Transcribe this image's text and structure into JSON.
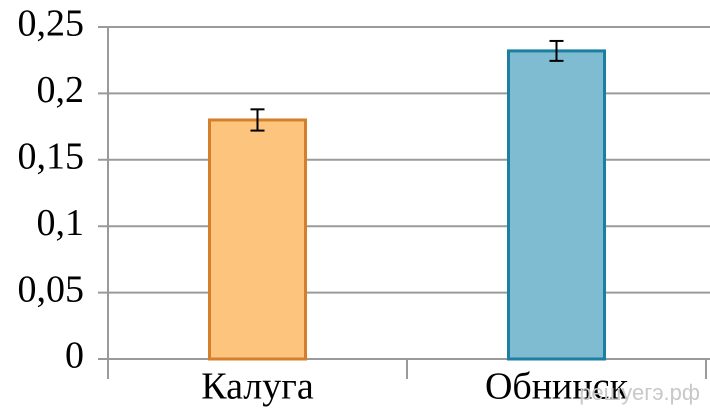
{
  "chart_data": {
    "type": "bar",
    "categories": [
      "Калуга",
      "Обнинск"
    ],
    "values": [
      0.18,
      0.232
    ],
    "errors": [
      0.008,
      0.0075
    ],
    "colors": [
      "#fdc47e",
      "#7fbcd2"
    ],
    "edge_colors": [
      "#d47f2c",
      "#1b7fa1"
    ],
    "ylim": [
      0,
      0.25
    ],
    "yticks": [
      0,
      {
        "value": 0.05,
        "label": "0,05"
      },
      {
        "value": 0.1,
        "label": "0,1"
      },
      {
        "value": 0.15,
        "label": "0,15"
      },
      {
        "value": 0.2,
        "label": "0,2"
      },
      {
        "value": 0.25,
        "label": "0,25"
      }
    ],
    "grid": true,
    "watermark": "решуегэ.рф"
  }
}
